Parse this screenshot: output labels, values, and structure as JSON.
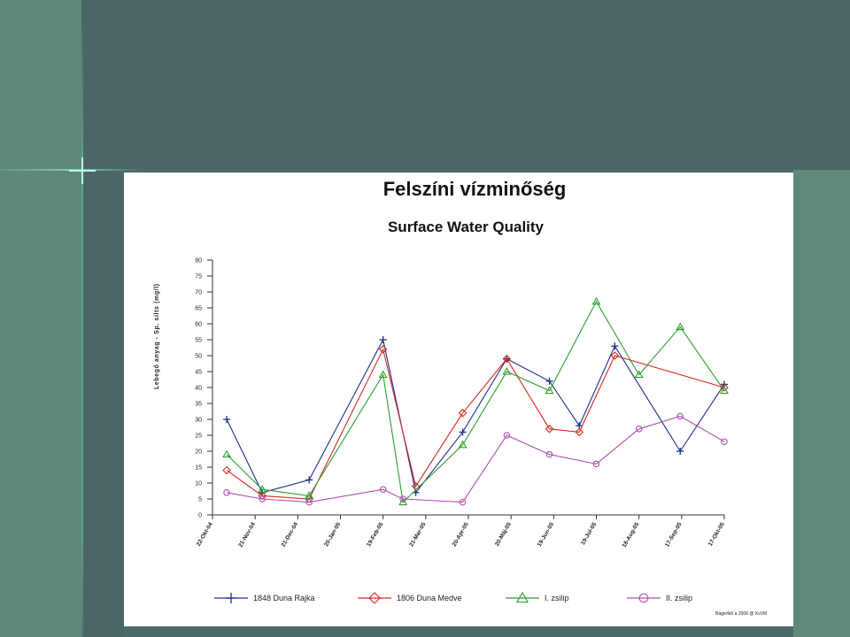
{
  "title": "Felszíni vízminőség",
  "subtitle": "Surface Water Quality",
  "credit": "Bágerfe6 a 2006 @ KvVM",
  "chart_data": {
    "type": "line",
    "title": "Felszíni vízminőség",
    "subtitle": "Surface Water Quality",
    "ylabel": "Lebegő anyag - Sp. silts (mg/l)",
    "ylim": [
      0,
      80
    ],
    "yticks": [
      0,
      5,
      10,
      15,
      20,
      25,
      30,
      35,
      40,
      45,
      50,
      55,
      60,
      65,
      70,
      75,
      80
    ],
    "xticks": [
      "22-Okt-04",
      "21-Nov-04",
      "21-Dec-04",
      "20-Jan-05",
      "19-Feb-05",
      "21-Mar-05",
      "20-Apr-05",
      "20-Máj-05",
      "19-Jun-05",
      "19-Jul-05",
      "18-Aug-05",
      "17-Sep-05",
      "17-Okt-05"
    ],
    "grid": false,
    "legend_position": "bottom",
    "series": [
      {
        "name": "1848 Duna Rajka",
        "color": "#1f2f8f",
        "marker": "plus",
        "x": [
          "2004-11-01",
          "2004-11-26",
          "2004-12-29",
          "2005-02-19",
          "2005-03-14",
          "2005-04-16",
          "2005-05-17",
          "2005-06-16",
          "2005-07-07",
          "2005-08-01",
          "2005-09-16",
          "2005-10-17"
        ],
        "values": [
          30,
          7,
          11,
          55,
          7,
          26,
          49,
          42,
          28,
          53,
          20,
          41
        ]
      },
      {
        "name": "1806 Duna Medve",
        "color": "#d22b20",
        "marker": "diamond",
        "x": [
          "2004-11-01",
          "2004-11-26",
          "2004-12-29",
          "2005-02-19",
          "2005-03-14",
          "2005-04-16",
          "2005-05-17",
          "2005-06-16",
          "2005-07-07",
          "2005-08-01",
          "2005-10-17"
        ],
        "values": [
          14,
          6,
          5,
          52,
          9,
          32,
          49,
          27,
          26,
          50,
          40
        ]
      },
      {
        "name": "I. zsilip",
        "color": "#2ea02e",
        "marker": "triangle",
        "x": [
          "2004-11-01",
          "2004-11-26",
          "2004-12-29",
          "2005-02-19",
          "2005-03-05",
          "2005-04-16",
          "2005-05-17",
          "2005-06-16",
          "2005-07-19",
          "2005-08-18",
          "2005-09-16",
          "2005-10-17"
        ],
        "values": [
          19,
          8,
          6,
          44,
          4,
          22,
          45,
          39,
          67,
          44,
          59,
          39
        ]
      },
      {
        "name": "II. zsilip",
        "color": "#b050b0",
        "marker": "circle",
        "x": [
          "2004-11-01",
          "2004-11-26",
          "2004-12-29",
          "2005-02-19",
          "2005-03-05",
          "2005-04-16",
          "2005-05-17",
          "2005-06-16",
          "2005-07-19",
          "2005-08-18",
          "2005-09-16",
          "2005-10-17"
        ],
        "values": [
          7,
          5,
          4,
          8,
          5,
          4,
          25,
          19,
          16,
          27,
          31,
          23
        ]
      }
    ]
  }
}
